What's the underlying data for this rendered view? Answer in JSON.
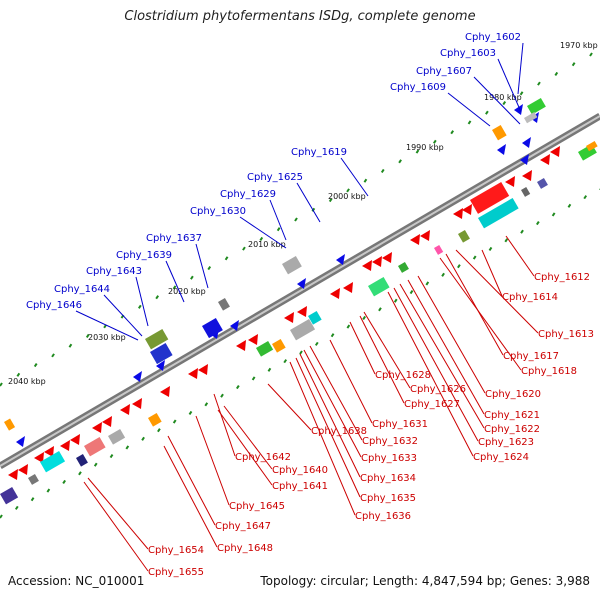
{
  "title": "Clostridium phytofermentans ISDg, complete genome",
  "accession": "Accession: NC_010001",
  "summary": "Topology: circular; Length: 4,847,594 bp; Genes: 3,988",
  "colors": {
    "forward_label": "#0000cc",
    "reverse_label": "#cc0000",
    "backbone": "#8a8a8a",
    "tick_green": "#1f8a1f"
  },
  "kbp_labels": [
    "1970 kbp",
    "1980 kbp",
    "1990 kbp",
    "2000 kbp",
    "2010 kbp",
    "2020 kbp",
    "2030 kbp",
    "2040 kbp"
  ],
  "top_labels": [
    "Cphy_1602",
    "Cphy_1603",
    "Cphy_1607",
    "Cphy_1609",
    "Cphy_1619",
    "Cphy_1625",
    "Cphy_1629",
    "Cphy_1630",
    "Cphy_1637",
    "Cphy_1639",
    "Cphy_1643",
    "Cphy_1644",
    "Cphy_1646"
  ],
  "bottom_labels": [
    "Cphy_1612",
    "Cphy_1614",
    "Cphy_1613",
    "Cphy_1617",
    "Cphy_1618",
    "Cphy_1620",
    "Cphy_1621",
    "Cphy_1622",
    "Cphy_1623",
    "Cphy_1624",
    "Cphy_1628",
    "Cphy_1626",
    "Cphy_1627",
    "Cphy_1631",
    "Cphy_1632",
    "Cphy_1633",
    "Cphy_1634",
    "Cphy_1635",
    "Cphy_1636",
    "Cphy_1638",
    "Cphy_1640",
    "Cphy_1641",
    "Cphy_1642",
    "Cphy_1645",
    "Cphy_1647",
    "Cphy_1648",
    "Cphy_1654",
    "Cphy_1655"
  ]
}
